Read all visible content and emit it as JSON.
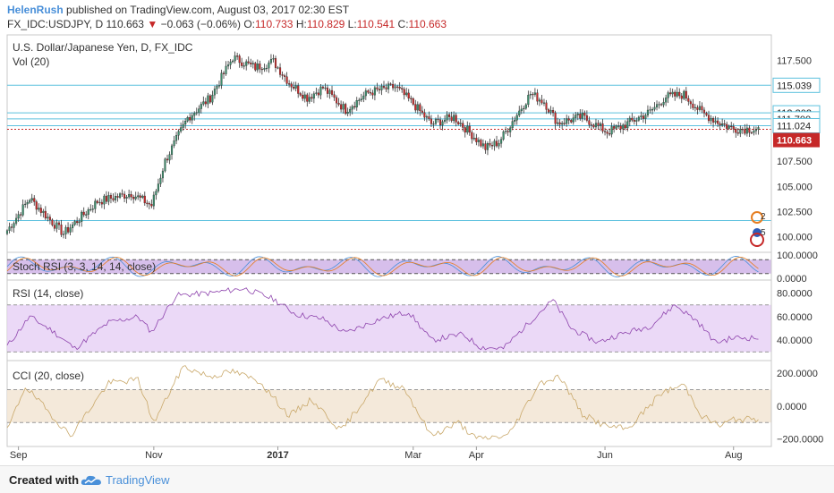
{
  "header": {
    "author": "HelenRush",
    "published_text": "published on TradingView.com, August 03, 2017 02:30 EST",
    "symbol": "FX_IDC:USDJPY, D",
    "last": "110.663",
    "change": "−0.063 (−0.06%)",
    "o_label": "O:",
    "o_value": "110.733",
    "h_label": "H:",
    "h_value": "110.829",
    "l_label": "L:",
    "l_value": "110.541",
    "c_label": "C:",
    "c_value": "110.663"
  },
  "footer": {
    "created_with": "Created with",
    "brand": "TradingView"
  },
  "colors": {
    "up": "#3c8d6c",
    "down": "#c62828",
    "level": "#5bc0de",
    "stoch_fill": "#b78adb",
    "rsi_fill": "#e6d0f5",
    "cci_fill": "#f3e7d6",
    "rsi_line": "#8e44ad",
    "cci_line": "#c9a86a"
  },
  "chart_data": [
    {
      "type": "candlestick",
      "title": "U.S. Dollar/Japanese Yen, D, FX_IDC",
      "subtitle": "Vol (20)",
      "ylim": [
        98.8,
        119.6
      ],
      "y_ticks": [
        "117.500",
        "107.500",
        "105.000",
        "102.500",
        "100.000"
      ],
      "y_tick_values": [
        117.5,
        107.5,
        105.0,
        102.5,
        100.0
      ],
      "level_lines": [
        115.039,
        112.302,
        111.7,
        111.024,
        101.6
      ],
      "level_labels": [
        "115.039",
        "112.302",
        "111.700",
        "111.024"
      ],
      "last_price": 110.663,
      "last_price_label": "110.663",
      "x_labels": [
        "Sep",
        "Nov",
        "2017",
        "Mar",
        "Apr",
        "Jun",
        "Aug"
      ],
      "x_label_positions": [
        5,
        65,
        120,
        180,
        208,
        265,
        322
      ],
      "anchors": [
        [
          0,
          100.6
        ],
        [
          10,
          103.8
        ],
        [
          18,
          101.9
        ],
        [
          25,
          100.3
        ],
        [
          40,
          103.5
        ],
        [
          55,
          104.3
        ],
        [
          64,
          103.1
        ],
        [
          70,
          107.5
        ],
        [
          80,
          111.8
        ],
        [
          90,
          113.8
        ],
        [
          100,
          117.8
        ],
        [
          110,
          116.8
        ],
        [
          118,
          117.4
        ],
        [
          125,
          115.3
        ],
        [
          133,
          113.8
        ],
        [
          140,
          114.8
        ],
        [
          150,
          112.6
        ],
        [
          160,
          114.3
        ],
        [
          172,
          114.9
        ],
        [
          180,
          113.2
        ],
        [
          188,
          111.2
        ],
        [
          198,
          111.9
        ],
        [
          212,
          108.8
        ],
        [
          218,
          109.4
        ],
        [
          232,
          114.2
        ],
        [
          238,
          113.4
        ],
        [
          244,
          111.3
        ],
        [
          255,
          111.9
        ],
        [
          266,
          110.4
        ],
        [
          272,
          110.9
        ],
        [
          285,
          112.4
        ],
        [
          292,
          113.9
        ],
        [
          300,
          114.1
        ],
        [
          308,
          112.3
        ],
        [
          315,
          111.4
        ],
        [
          322,
          110.7
        ]
      ],
      "xlim": [
        0,
        334
      ]
    },
    {
      "type": "line",
      "title": "Stoch RSI (3, 3, 14, 14, close)",
      "ylim": [
        0,
        100
      ],
      "y_ticks": [
        "100.0000",
        "0.0000"
      ],
      "bands": [
        80,
        20
      ]
    },
    {
      "type": "line",
      "title": "RSI (14, close)",
      "ylim": [
        25,
        88
      ],
      "y_ticks": [
        "80.0000",
        "60.0000",
        "40.0000"
      ],
      "y_tick_values": [
        80,
        60,
        40
      ],
      "bands": [
        70,
        30
      ],
      "anchors": [
        [
          0,
          35
        ],
        [
          10,
          60
        ],
        [
          20,
          48
        ],
        [
          30,
          33
        ],
        [
          45,
          55
        ],
        [
          58,
          60
        ],
        [
          64,
          47
        ],
        [
          75,
          78
        ],
        [
          90,
          80
        ],
        [
          105,
          84
        ],
        [
          118,
          75
        ],
        [
          128,
          62
        ],
        [
          140,
          58
        ],
        [
          150,
          46
        ],
        [
          165,
          58
        ],
        [
          178,
          64
        ],
        [
          188,
          40
        ],
        [
          202,
          45
        ],
        [
          210,
          34
        ],
        [
          220,
          33
        ],
        [
          235,
          62
        ],
        [
          242,
          74
        ],
        [
          250,
          50
        ],
        [
          262,
          38
        ],
        [
          270,
          44
        ],
        [
          285,
          52
        ],
        [
          296,
          70
        ],
        [
          306,
          56
        ],
        [
          314,
          38
        ],
        [
          322,
          42
        ]
      ]
    },
    {
      "type": "line",
      "title": "CCI (20, close)",
      "ylim": [
        -240,
        260
      ],
      "y_ticks": [
        "200.0000",
        "0.0000",
        "−200.0000"
      ],
      "y_tick_values": [
        200,
        0,
        -200
      ],
      "bands": [
        100,
        -100
      ],
      "anchors": [
        [
          0,
          -150
        ],
        [
          8,
          120
        ],
        [
          18,
          -30
        ],
        [
          28,
          -180
        ],
        [
          45,
          140
        ],
        [
          58,
          160
        ],
        [
          65,
          -100
        ],
        [
          78,
          240
        ],
        [
          90,
          180
        ],
        [
          100,
          210
        ],
        [
          112,
          150
        ],
        [
          125,
          -60
        ],
        [
          135,
          40
        ],
        [
          148,
          -150
        ],
        [
          165,
          160
        ],
        [
          176,
          110
        ],
        [
          188,
          -180
        ],
        [
          200,
          -100
        ],
        [
          208,
          -200
        ],
        [
          222,
          -180
        ],
        [
          236,
          140
        ],
        [
          245,
          180
        ],
        [
          255,
          -50
        ],
        [
          265,
          -120
        ],
        [
          275,
          -140
        ],
        [
          290,
          80
        ],
        [
          300,
          130
        ],
        [
          308,
          -60
        ],
        [
          316,
          -120
        ],
        [
          322,
          -80
        ]
      ]
    }
  ]
}
